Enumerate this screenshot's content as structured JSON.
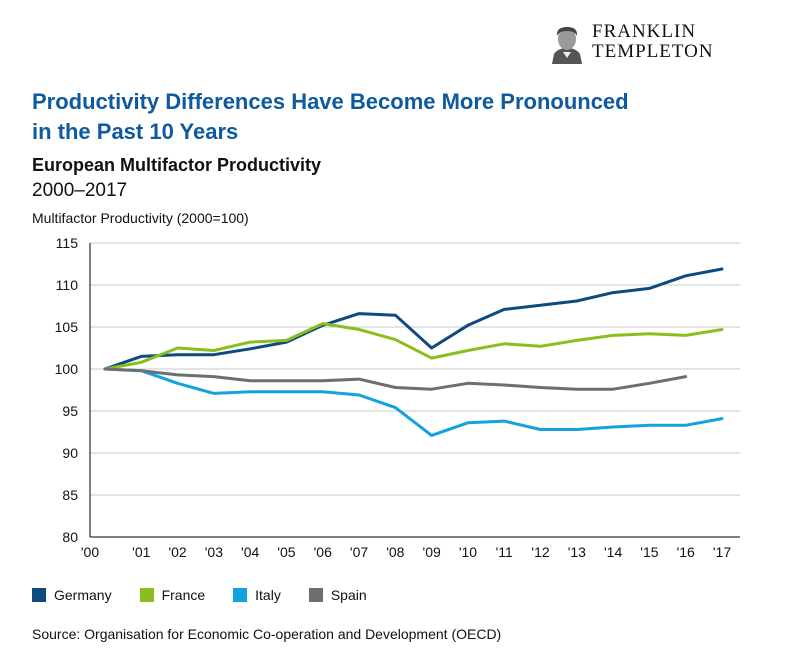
{
  "logo": {
    "line1": "FRANKLIN",
    "line2": "TEMPLETON"
  },
  "header": {
    "title_line1": "Productivity Differences Have Become More Pronounced",
    "title_line2": "in the Past 10 Years",
    "subtitle": "European Multifactor Productivity",
    "date_range": "2000–2017"
  },
  "source": "Source: Organisation for Economic Co-operation and Development (OECD)",
  "chart_data": {
    "type": "line",
    "title": "European Multifactor Productivity",
    "ylabel": "Multifactor Productivity (2000=100)",
    "xlabel": "",
    "ylim": [
      80,
      115
    ],
    "yticks": [
      80,
      85,
      90,
      95,
      100,
      105,
      110,
      115
    ],
    "categories": [
      "'00",
      "'01",
      "'02",
      "'03",
      "'04",
      "'05",
      "'06",
      "'07",
      "'08",
      "'09",
      "'10",
      "'11",
      "'12",
      "'13",
      "'14",
      "'15",
      "'16",
      "'17"
    ],
    "grid": true,
    "legend_position": "bottom-left",
    "series": [
      {
        "name": "Germany",
        "color": "#0e4a7e",
        "values": [
          100,
          101.5,
          101.7,
          101.7,
          102.4,
          103.2,
          105.2,
          106.6,
          106.4,
          102.5,
          105.2,
          107.1,
          107.6,
          108.1,
          109.1,
          109.6,
          111.1,
          111.9
        ]
      },
      {
        "name": "France",
        "color": "#8cbd1f",
        "values": [
          100,
          100.8,
          102.5,
          102.2,
          103.2,
          103.4,
          105.4,
          104.7,
          103.5,
          101.3,
          102.2,
          103.0,
          102.7,
          103.4,
          104.0,
          104.2,
          104.0,
          104.7
        ]
      },
      {
        "name": "Italy",
        "color": "#12a2df",
        "values": [
          100,
          99.8,
          98.3,
          97.1,
          97.3,
          97.3,
          97.3,
          96.9,
          95.4,
          92.1,
          93.6,
          93.8,
          92.8,
          92.8,
          93.1,
          93.3,
          93.3,
          94.1
        ]
      },
      {
        "name": "Spain",
        "color": "#6d6e71",
        "values": [
          100,
          99.8,
          99.3,
          99.1,
          98.6,
          98.6,
          98.6,
          98.8,
          97.8,
          97.6,
          98.3,
          98.1,
          97.8,
          97.6,
          97.6,
          98.3,
          99.1,
          null
        ]
      }
    ]
  }
}
